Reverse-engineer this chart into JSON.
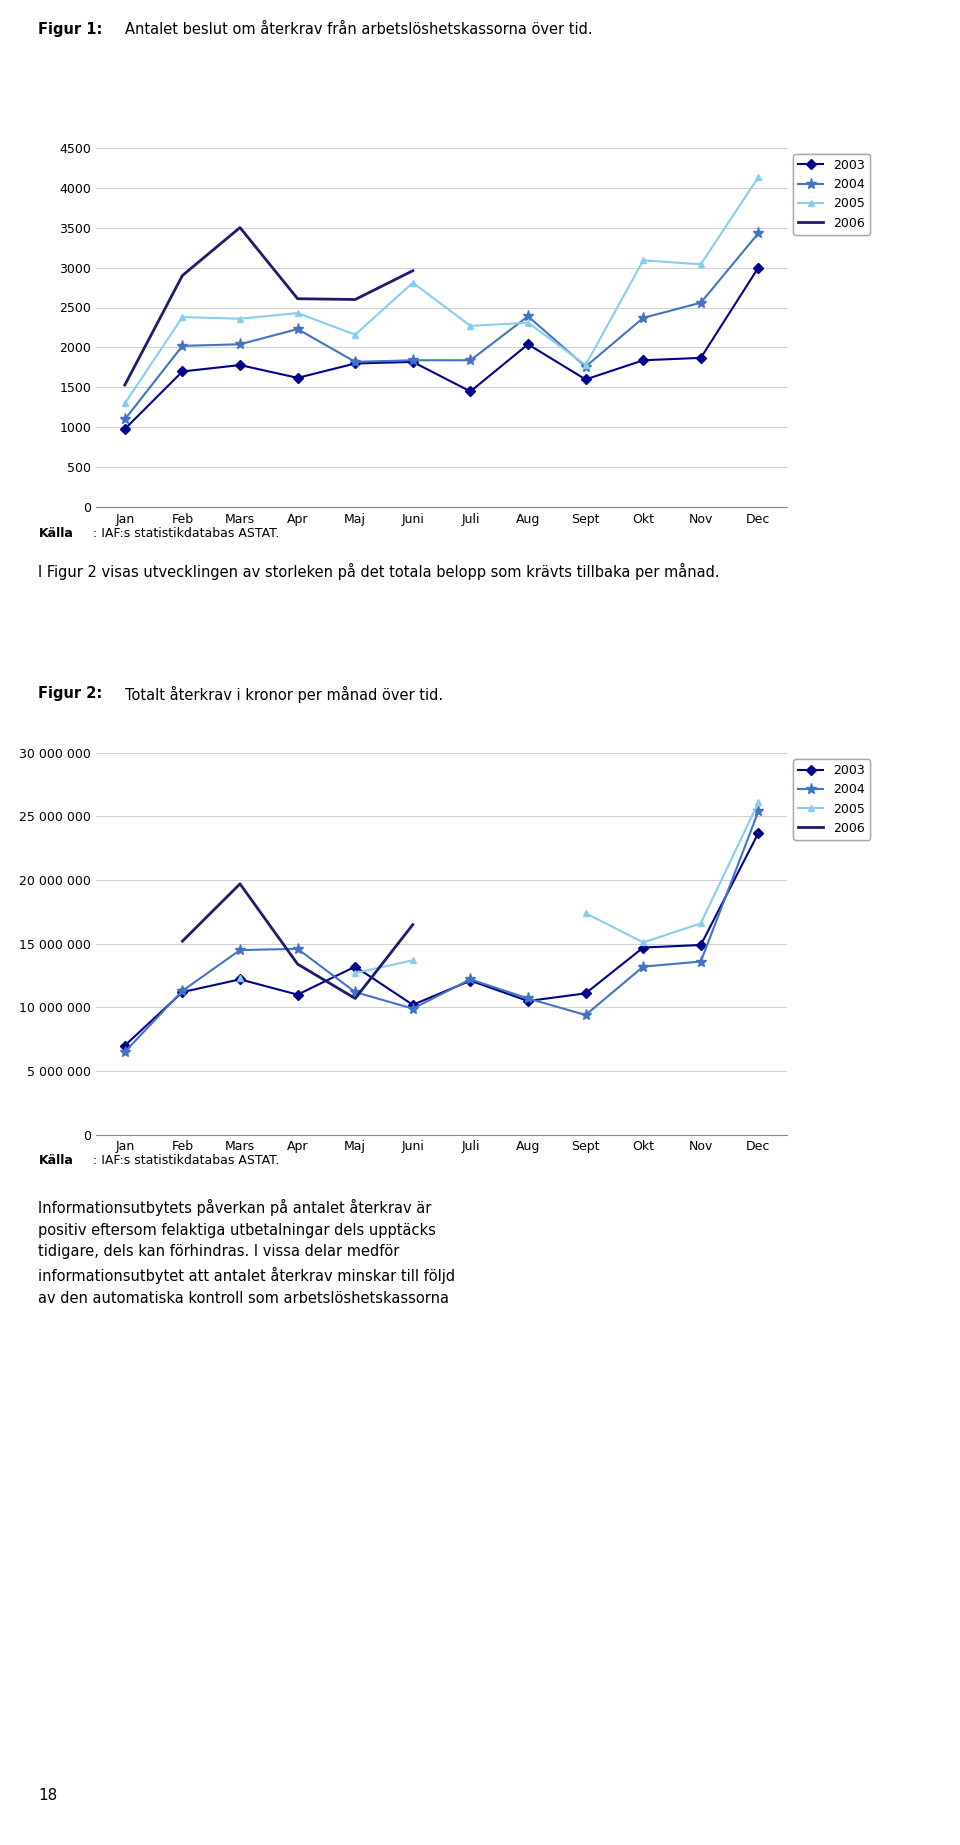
{
  "fig1_title_bold": "Figur 1:",
  "fig1_title_rest": " Antalet beslut om återkrav från arbetslöshetskassorna över tid.",
  "fig2_title_bold": "Figur 2:",
  "fig2_title_rest": " Totalt återkrav i kronor per månad över tid.",
  "kalla_bold": "Källa",
  "kalla_rest": ": IAF:s statistikdatabas ASTAT.",
  "body_text": "I Figur 2 visas utvecklingen av storleken på det totala belopp som krävts tillbaka per månad.",
  "footer_text": "Informationsutbytets påverkan på antalet återkrav är positiv eftersom felaktiga utbetalningar dels upptäcks tidigare, dels kan förhindras. I vissa delar medför informationsutbytet att antalet återkrav minskar till följd av den automatiska kontroll som arbetslöshetskassorna",
  "page_number": "18",
  "months": [
    "Jan",
    "Feb",
    "Mars",
    "Apr",
    "Maj",
    "Juni",
    "Juli",
    "Aug",
    "Sept",
    "Okt",
    "Nov",
    "Dec"
  ],
  "fig1_ylim": [
    0,
    4500
  ],
  "fig1_yticks": [
    0,
    500,
    1000,
    1500,
    2000,
    2500,
    3000,
    3500,
    4000,
    4500
  ],
  "fig1_series": {
    "2003": {
      "color": "#00008B",
      "marker": "D",
      "data": [
        980,
        1700,
        1780,
        1620,
        1800,
        1820,
        1450,
        2040,
        1600,
        1840,
        1870,
        3000
      ]
    },
    "2004": {
      "color": "#4472C4",
      "marker": "*",
      "data": [
        1100,
        2020,
        2040,
        2230,
        1820,
        1840,
        1840,
        2390,
        1760,
        2370,
        2560,
        3430
      ]
    },
    "2005": {
      "color": "#87CEEB",
      "marker": "^",
      "data": [
        1300,
        2380,
        2360,
        2430,
        2160,
        2810,
        2270,
        2310,
        1780,
        3090,
        3040,
        4130
      ]
    },
    "2006": {
      "color": "#1C1C6C",
      "marker": null,
      "data": [
        1530,
        2900,
        3500,
        2610,
        2600,
        2960,
        null,
        null,
        null,
        null,
        null,
        null
      ]
    }
  },
  "fig2_ylim": [
    0,
    30000000
  ],
  "fig2_yticks": [
    0,
    5000000,
    10000000,
    15000000,
    20000000,
    25000000,
    30000000
  ],
  "fig2_ytick_labels": [
    "0",
    "5 000 000",
    "10 000 000",
    "15 000 000",
    "20 000 000",
    "25 000 000",
    "30 000 000"
  ],
  "fig2_series": {
    "2003": {
      "color": "#00008B",
      "marker": "D",
      "data": [
        7000000,
        11200000,
        12200000,
        11000000,
        13200000,
        10200000,
        12100000,
        10500000,
        11100000,
        14700000,
        14900000,
        23700000
      ]
    },
    "2004": {
      "color": "#4472C4",
      "marker": "*",
      "data": [
        6500000,
        11300000,
        14500000,
        14600000,
        11200000,
        9900000,
        12200000,
        10700000,
        9400000,
        13200000,
        13600000,
        25400000
      ]
    },
    "2005": {
      "color": "#87CEEB",
      "marker": "^",
      "data": [
        null,
        null,
        12300000,
        null,
        12700000,
        13700000,
        null,
        null,
        17400000,
        15100000,
        16600000,
        26100000
      ]
    },
    "2006": {
      "color": "#1C1C6C",
      "marker": null,
      "data": [
        null,
        15200000,
        19700000,
        13400000,
        10700000,
        16500000,
        null,
        null,
        null,
        null,
        null,
        null
      ]
    }
  },
  "year_order": [
    "2003",
    "2004",
    "2005",
    "2006"
  ],
  "background_color": "#ffffff",
  "grid_color": "#d0d0d0"
}
